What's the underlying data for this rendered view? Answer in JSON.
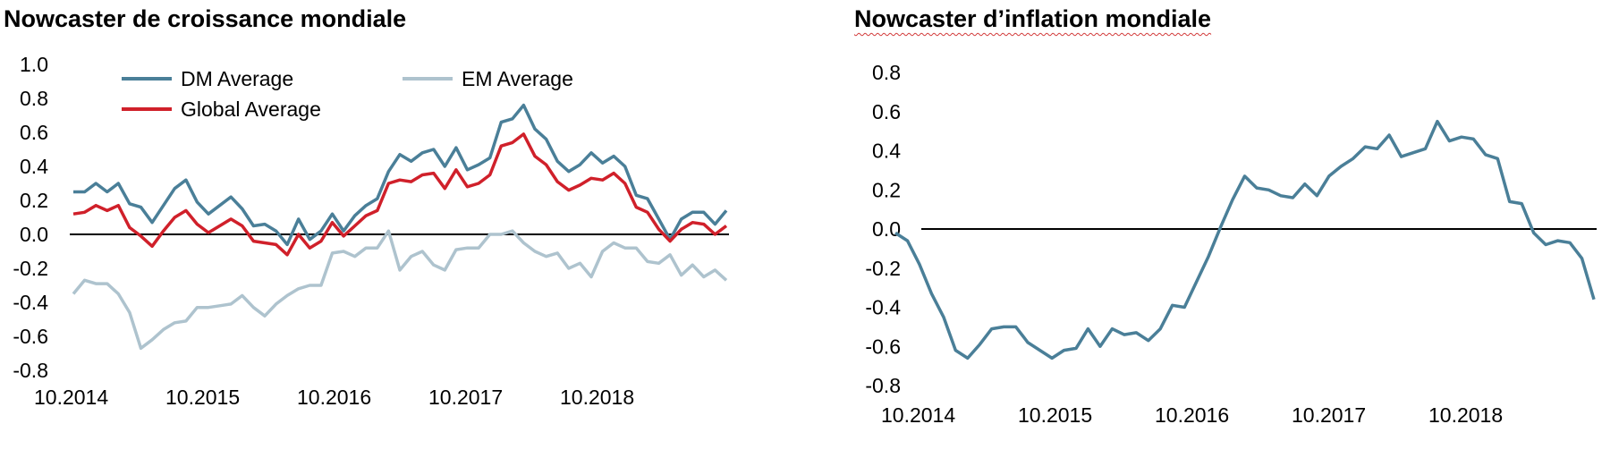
{
  "chart_data": [
    {
      "type": "line",
      "title": "Nowcaster de croissance mondiale",
      "xlabel": "",
      "ylabel": "",
      "ylim": [
        -0.8,
        1.0
      ],
      "yticks": [
        "1.0",
        "0.8",
        "0.6",
        "0.4",
        "0.2",
        "0.0",
        "-0.2",
        "-0.4",
        "-0.6",
        "-0.8"
      ],
      "xticks": [
        "10.2014",
        "10.2015",
        "10.2016",
        "10.2017",
        "10.2018"
      ],
      "legend_position": "top",
      "zero_line": true,
      "series": [
        {
          "name": "DM Average",
          "color": "#4a7f98",
          "values": [
            0.25,
            0.25,
            0.3,
            0.25,
            0.3,
            0.18,
            0.16,
            0.07,
            0.17,
            0.27,
            0.32,
            0.19,
            0.12,
            0.17,
            0.22,
            0.15,
            0.05,
            0.06,
            0.02,
            -0.06,
            0.09,
            -0.03,
            0.02,
            0.12,
            0.02,
            0.11,
            0.17,
            0.21,
            0.37,
            0.47,
            0.43,
            0.48,
            0.5,
            0.4,
            0.51,
            0.38,
            0.41,
            0.45,
            0.66,
            0.68,
            0.76,
            0.62,
            0.56,
            0.43,
            0.37,
            0.41,
            0.48,
            0.42,
            0.46,
            0.4,
            0.23,
            0.21,
            0.09,
            -0.03,
            0.09,
            0.13,
            0.13,
            0.06,
            0.14
          ]
        },
        {
          "name": "EM Average",
          "color": "#aec3ce",
          "values": [
            -0.35,
            -0.27,
            -0.29,
            -0.29,
            -0.35,
            -0.46,
            -0.67,
            -0.62,
            -0.56,
            -0.52,
            -0.51,
            -0.43,
            -0.43,
            -0.42,
            -0.41,
            -0.36,
            -0.43,
            -0.48,
            -0.41,
            -0.36,
            -0.32,
            -0.3,
            -0.3,
            -0.11,
            -0.1,
            -0.13,
            -0.08,
            -0.08,
            0.02,
            -0.21,
            -0.13,
            -0.1,
            -0.18,
            -0.21,
            -0.09,
            -0.08,
            -0.08,
            0.0,
            0.0,
            0.02,
            -0.05,
            -0.1,
            -0.13,
            -0.11,
            -0.2,
            -0.17,
            -0.25,
            -0.1,
            -0.05,
            -0.08,
            -0.08,
            -0.16,
            -0.17,
            -0.12,
            -0.24,
            -0.18,
            -0.25,
            -0.21,
            -0.27
          ]
        },
        {
          "name": "Global Average",
          "color": "#d0202a",
          "values": [
            0.12,
            0.13,
            0.17,
            0.14,
            0.17,
            0.04,
            -0.01,
            -0.07,
            0.02,
            0.1,
            0.14,
            0.06,
            0.01,
            0.05,
            0.09,
            0.05,
            -0.04,
            -0.05,
            -0.06,
            -0.12,
            0.0,
            -0.08,
            -0.04,
            0.07,
            -0.01,
            0.05,
            0.11,
            0.14,
            0.3,
            0.32,
            0.31,
            0.35,
            0.36,
            0.27,
            0.38,
            0.28,
            0.3,
            0.35,
            0.52,
            0.54,
            0.59,
            0.46,
            0.41,
            0.31,
            0.26,
            0.29,
            0.33,
            0.32,
            0.36,
            0.3,
            0.16,
            0.13,
            0.03,
            -0.04,
            0.03,
            0.07,
            0.06,
            0.0,
            0.05
          ]
        }
      ]
    },
    {
      "type": "line",
      "title": "Nowcaster d’inflation mondiale",
      "xlabel": "",
      "ylabel": "",
      "ylim": [
        -0.8,
        0.8
      ],
      "yticks": [
        "0.8",
        "0.6",
        "0.4",
        "0.2",
        "0.0",
        "-0.2",
        "-0.4",
        "-0.6",
        "-0.8"
      ],
      "xticks": [
        "10.2014",
        "10.2015",
        "10.2016",
        "10.2017",
        "10.2018"
      ],
      "zero_line": true,
      "series": [
        {
          "color": "#4a7f98",
          "values": [
            -0.02,
            -0.06,
            -0.18,
            -0.33,
            -0.45,
            -0.62,
            -0.66,
            -0.59,
            -0.51,
            -0.5,
            -0.5,
            -0.58,
            -0.62,
            -0.66,
            -0.62,
            -0.61,
            -0.51,
            -0.6,
            -0.51,
            -0.54,
            -0.53,
            -0.57,
            -0.51,
            -0.39,
            -0.4,
            -0.27,
            -0.14,
            0.01,
            0.15,
            0.27,
            0.21,
            0.2,
            0.17,
            0.16,
            0.23,
            0.17,
            0.27,
            0.32,
            0.36,
            0.42,
            0.41,
            0.48,
            0.37,
            0.39,
            0.41,
            0.55,
            0.45,
            0.47,
            0.46,
            0.38,
            0.36,
            0.14,
            0.13,
            -0.02,
            -0.08,
            -0.06,
            -0.07,
            -0.15,
            -0.36
          ]
        }
      ]
    }
  ]
}
